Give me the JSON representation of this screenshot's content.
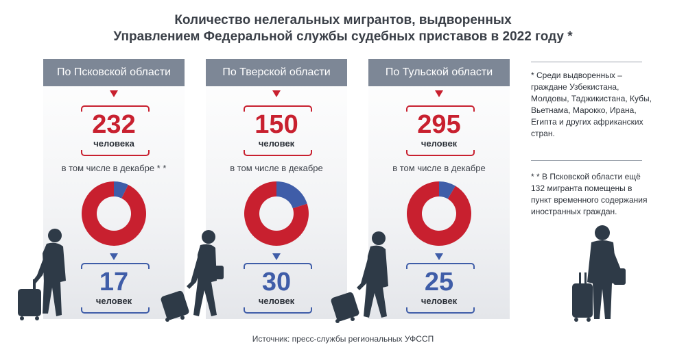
{
  "title_line1": "Количество нелегальных мигрантов, выдворенных",
  "title_line2": "Управлением Федеральной службы судебных приставов в 2022 году *",
  "colors": {
    "total": "#c8202f",
    "december": "#3f5da8",
    "header": "#7d8796"
  },
  "chart_data": {
    "type": "pie",
    "regions": [
      {
        "header": "По Псковской области",
        "total": "232",
        "total_unit": "человека",
        "sub_label": "в том числе в декабре * *",
        "december": "17",
        "december_unit": "человек"
      },
      {
        "header": "По Тверской области",
        "total": "150",
        "total_unit": "человек",
        "sub_label": "в том числе в декабре",
        "december": "30",
        "december_unit": "человек"
      },
      {
        "header": "По Тульской области",
        "total": "295",
        "total_unit": "человек",
        "sub_label": "в том числе в декабре",
        "december": "25",
        "december_unit": "человек"
      }
    ]
  },
  "notes": {
    "note1": "* Среди выдворенных – граждане Узбекистана, Молдовы, Таджикистана, Кубы, Вьетнама, Марокко, Ирана, Египта и других африканских стран.",
    "note2": "* * В Псковской области ещё 132 мигранта помещены в пункт временного содержания иностранных граждан."
  },
  "source": "Источник: пресс-службы региональных УФССП"
}
